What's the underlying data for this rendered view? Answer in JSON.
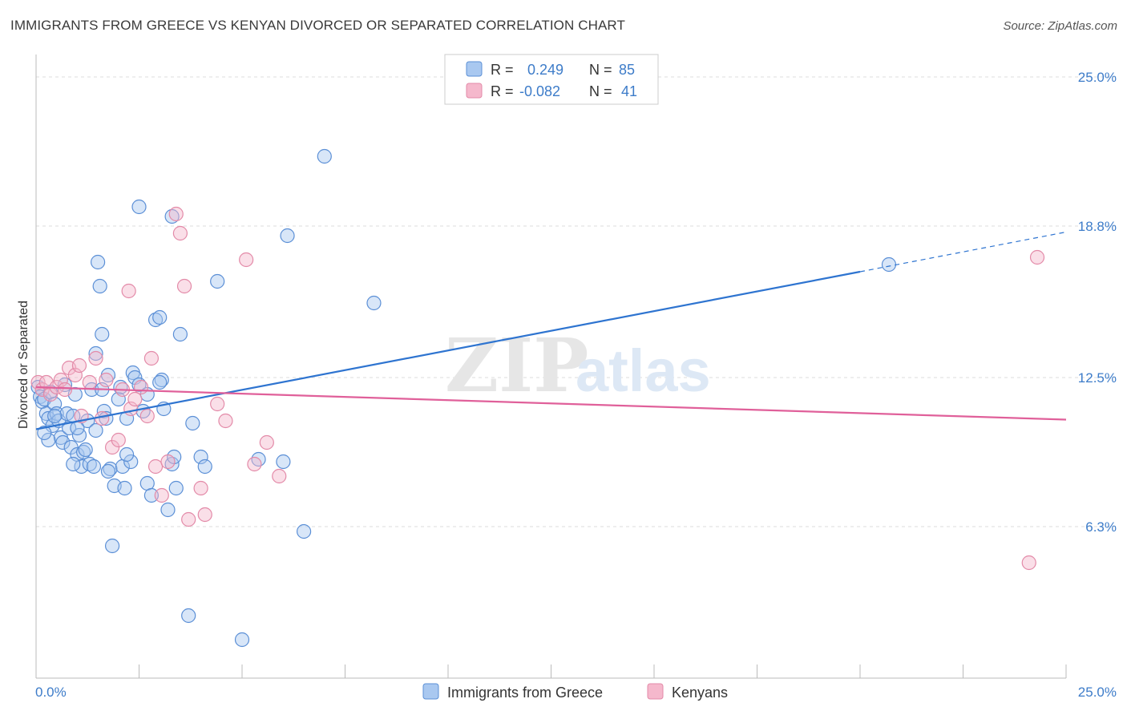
{
  "header": {
    "title": "IMMIGRANTS FROM GREECE VS KENYAN DIVORCED OR SEPARATED CORRELATION CHART",
    "source": "Source: ZipAtlas.com"
  },
  "watermark": {
    "zip": "ZIP",
    "atlas": "atlas"
  },
  "legend_box": {
    "rows": [
      {
        "r_label": "R = ",
        "r_value": "0.249",
        "n_label": "N = ",
        "n_value": "85",
        "color": "#5b8fd6"
      },
      {
        "r_label": "R = ",
        "r_value": "-0.082",
        "n_label": "N = ",
        "n_value": "41",
        "color": "#e38aa8"
      }
    ]
  },
  "colors": {
    "greece_fill": "#a9c8f0",
    "greece_stroke": "#5b8fd6",
    "greece_line": "#2e74d0",
    "kenya_fill": "#f5b8cc",
    "kenya_stroke": "#e38aa8",
    "kenya_line": "#e0609a",
    "axis_text": "#3d7cc9",
    "grid": "#dddddd"
  },
  "chart_data": {
    "type": "scatter",
    "title": "IMMIGRANTS FROM GREECE VS KENYAN DIVORCED OR SEPARATED CORRELATION CHART",
    "xlabel": "",
    "ylabel": "Divorced or Separated",
    "xlim": [
      0,
      25
    ],
    "ylim": [
      0,
      25.6
    ],
    "x_tick_labels": [
      "0.0%",
      "25.0%"
    ],
    "y_tick_values": [
      6.3,
      12.5,
      18.8,
      25.0
    ],
    "y_tick_labels": [
      "6.3%",
      "12.5%",
      "18.8%",
      "25.0%"
    ],
    "grid": true,
    "legend_position": "bottom-center",
    "series": [
      {
        "name": "Immigrants from Greece",
        "r": 0.249,
        "n": 85,
        "trend": {
          "x0": 0,
          "y0": 10.35,
          "x1": 20,
          "y1": 16.9,
          "dashed_to_x": 25,
          "dashed_to_y": 18.55
        },
        "points": [
          [
            0.05,
            12.1
          ],
          [
            0.1,
            11.7
          ],
          [
            0.15,
            11.5
          ],
          [
            0.2,
            11.6
          ],
          [
            0.25,
            11.0
          ],
          [
            0.3,
            10.8
          ],
          [
            0.35,
            11.9
          ],
          [
            0.4,
            10.5
          ],
          [
            0.45,
            11.4
          ],
          [
            0.5,
            11.0
          ],
          [
            0.55,
            10.7
          ],
          [
            0.6,
            10.0
          ],
          [
            0.65,
            9.8
          ],
          [
            0.7,
            12.2
          ],
          [
            0.75,
            11.0
          ],
          [
            0.8,
            10.4
          ],
          [
            0.85,
            9.6
          ],
          [
            0.9,
            10.9
          ],
          [
            0.95,
            11.8
          ],
          [
            1.0,
            9.3
          ],
          [
            1.05,
            10.1
          ],
          [
            1.1,
            8.8
          ],
          [
            1.15,
            9.4
          ],
          [
            1.2,
            9.5
          ],
          [
            1.25,
            10.7
          ],
          [
            1.3,
            8.9
          ],
          [
            1.35,
            12.0
          ],
          [
            1.4,
            8.8
          ],
          [
            1.45,
            13.5
          ],
          [
            1.5,
            17.3
          ],
          [
            1.55,
            16.3
          ],
          [
            1.6,
            14.3
          ],
          [
            1.65,
            11.1
          ],
          [
            1.7,
            10.8
          ],
          [
            1.75,
            12.6
          ],
          [
            1.8,
            8.7
          ],
          [
            1.85,
            5.5
          ],
          [
            1.9,
            8.0
          ],
          [
            2.0,
            11.6
          ],
          [
            2.05,
            12.1
          ],
          [
            2.1,
            8.8
          ],
          [
            2.15,
            7.9
          ],
          [
            2.2,
            10.8
          ],
          [
            2.3,
            9.0
          ],
          [
            2.35,
            12.7
          ],
          [
            2.4,
            12.5
          ],
          [
            2.5,
            12.2
          ],
          [
            2.6,
            11.1
          ],
          [
            2.7,
            8.1
          ],
          [
            2.8,
            7.6
          ],
          [
            2.9,
            14.9
          ],
          [
            3.0,
            15.0
          ],
          [
            3.05,
            12.4
          ],
          [
            3.1,
            11.2
          ],
          [
            3.2,
            7.0
          ],
          [
            3.3,
            8.9
          ],
          [
            3.35,
            9.2
          ],
          [
            3.4,
            7.9
          ],
          [
            3.5,
            14.3
          ],
          [
            3.7,
            2.6
          ],
          [
            3.8,
            10.6
          ],
          [
            4.0,
            9.2
          ],
          [
            4.1,
            8.8
          ],
          [
            4.4,
            16.5
          ],
          [
            5.0,
            1.6
          ],
          [
            5.4,
            9.1
          ],
          [
            6.0,
            9.0
          ],
          [
            6.1,
            18.4
          ],
          [
            6.5,
            6.1
          ],
          [
            7.0,
            21.7
          ],
          [
            8.2,
            15.6
          ],
          [
            20.7,
            17.2
          ],
          [
            3.0,
            12.3
          ],
          [
            1.0,
            10.4
          ],
          [
            0.45,
            10.9
          ],
          [
            2.5,
            19.6
          ],
          [
            3.3,
            19.2
          ],
          [
            1.75,
            8.6
          ],
          [
            2.7,
            11.8
          ],
          [
            0.9,
            8.9
          ],
          [
            1.45,
            10.3
          ],
          [
            0.3,
            9.9
          ],
          [
            2.2,
            9.3
          ],
          [
            1.6,
            12.0
          ],
          [
            0.2,
            10.2
          ]
        ]
      },
      {
        "name": "Kenyans",
        "r": -0.082,
        "n": 41,
        "trend": {
          "x0": 0,
          "y0": 12.1,
          "x1": 25,
          "y1": 10.75
        },
        "points": [
          [
            0.05,
            12.3
          ],
          [
            0.15,
            12.0
          ],
          [
            0.25,
            12.3
          ],
          [
            0.35,
            11.8
          ],
          [
            0.5,
            12.1
          ],
          [
            0.6,
            12.4
          ],
          [
            0.7,
            12.0
          ],
          [
            0.8,
            12.9
          ],
          [
            0.95,
            12.6
          ],
          [
            1.05,
            13.0
          ],
          [
            1.1,
            10.9
          ],
          [
            1.3,
            12.3
          ],
          [
            1.45,
            13.3
          ],
          [
            1.6,
            10.8
          ],
          [
            1.7,
            12.4
          ],
          [
            1.85,
            9.6
          ],
          [
            2.0,
            9.9
          ],
          [
            2.1,
            12.0
          ],
          [
            2.25,
            16.1
          ],
          [
            2.3,
            11.2
          ],
          [
            2.4,
            11.6
          ],
          [
            2.55,
            12.1
          ],
          [
            2.7,
            10.9
          ],
          [
            2.8,
            13.3
          ],
          [
            2.9,
            8.8
          ],
          [
            3.05,
            7.6
          ],
          [
            3.2,
            9.0
          ],
          [
            3.4,
            19.3
          ],
          [
            3.5,
            18.5
          ],
          [
            3.6,
            16.3
          ],
          [
            3.7,
            6.6
          ],
          [
            4.0,
            7.9
          ],
          [
            4.1,
            6.8
          ],
          [
            4.4,
            11.4
          ],
          [
            4.6,
            10.7
          ],
          [
            5.1,
            17.4
          ],
          [
            5.3,
            8.9
          ],
          [
            5.6,
            9.8
          ],
          [
            5.9,
            8.4
          ],
          [
            24.3,
            17.5
          ],
          [
            24.1,
            4.8
          ]
        ]
      }
    ]
  },
  "bottom_legend": [
    {
      "label": "Immigrants from Greece"
    },
    {
      "label": "Kenyans"
    }
  ]
}
